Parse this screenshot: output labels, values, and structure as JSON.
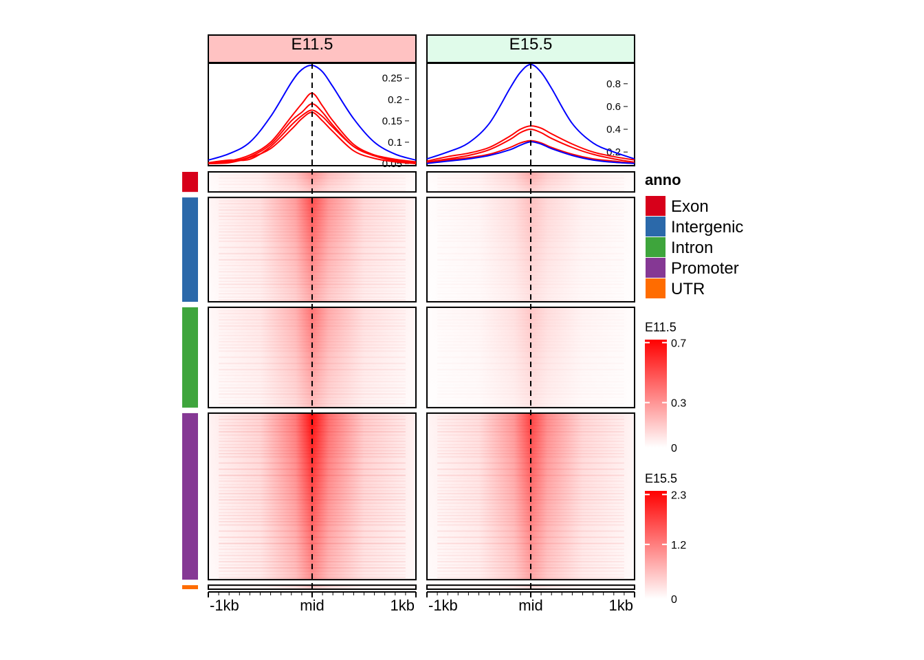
{
  "colors": {
    "E11.5_header_bg": "#ffc2c2",
    "E15.5_header_bg": "#e0fbea",
    "heat_low": "#ffffff",
    "heat_high": "#ff0000",
    "profile_blue": "#0000ff",
    "profile_red": "#ff0000"
  },
  "legend": {
    "anno_title": "anno",
    "anno_items": [
      {
        "label": "Exon",
        "color": "#d7001a"
      },
      {
        "label": "Intergenic",
        "color": "#2b69aa"
      },
      {
        "label": "Intron",
        "color": "#3ea53c"
      },
      {
        "label": "Promoter",
        "color": "#853894"
      },
      {
        "label": "UTR",
        "color": "#ff6c00"
      }
    ],
    "colorbars": [
      {
        "title": "E11.5",
        "ticks": [
          "0.7",
          "0.3",
          "0"
        ],
        "tick_values": [
          0.7,
          0.3,
          0
        ],
        "max": 0.72
      },
      {
        "title": "E15.5",
        "ticks": [
          "2.3",
          "1.2",
          "0"
        ],
        "tick_values": [
          2.3,
          1.2,
          0
        ],
        "max": 2.38
      }
    ]
  },
  "chart_data": {
    "type": "heatmap",
    "x_ticks": [
      "-1kb",
      "mid",
      "1kb"
    ],
    "x_range_bp": [
      -1000,
      1000
    ],
    "row_groups": [
      "Exon",
      "Intergenic",
      "Intron",
      "Promoter",
      "UTR"
    ],
    "row_group_sizes": [
      1,
      5.2,
      5,
      8.3,
      0.2
    ],
    "panels": [
      {
        "title": "E11.5",
        "profile": {
          "yticks": [
            "0.25",
            "0.2",
            "0.15",
            "0.1",
            "0.05"
          ],
          "ytick_values": [
            0.25,
            0.2,
            0.15,
            0.1,
            0.05
          ],
          "ylim": [
            0.045,
            0.285
          ],
          "series": [
            {
              "group": "Intergenic",
              "color": "#0000ff",
              "x": [
                -1000,
                -800,
                -600,
                -400,
                -200,
                -100,
                0,
                100,
                200,
                400,
                600,
                800,
                1000
              ],
              "y": [
                0.058,
                0.073,
                0.1,
                0.16,
                0.24,
                0.27,
                0.28,
                0.265,
                0.23,
                0.155,
                0.1,
                0.072,
                0.058
              ]
            },
            {
              "group": "Promoter",
              "color": "#ff0000",
              "x": [
                -1000,
                -800,
                -600,
                -400,
                -200,
                -100,
                0,
                100,
                200,
                400,
                600,
                800,
                1000
              ],
              "y": [
                0.052,
                0.056,
                0.07,
                0.1,
                0.16,
                0.19,
                0.215,
                0.185,
                0.15,
                0.095,
                0.07,
                0.058,
                0.052
              ]
            },
            {
              "group": "Intron",
              "color": "#ff0000",
              "x": [
                -1000,
                -800,
                -600,
                -400,
                -200,
                -100,
                0,
                100,
                200,
                400,
                600,
                800,
                1000
              ],
              "y": [
                0.05,
                0.054,
                0.066,
                0.095,
                0.15,
                0.17,
                0.19,
                0.17,
                0.14,
                0.09,
                0.068,
                0.056,
                0.05
              ]
            },
            {
              "group": "Exon",
              "color": "#ff0000",
              "x": [
                -1000,
                -800,
                -600,
                -400,
                -200,
                -100,
                0,
                100,
                200,
                400,
                600,
                800,
                1000
              ],
              "y": [
                0.052,
                0.058,
                0.06,
                0.09,
                0.14,
                0.162,
                0.175,
                0.16,
                0.135,
                0.09,
                0.07,
                0.06,
                0.054
              ]
            },
            {
              "group": "UTR",
              "color": "#ff0000",
              "x": [
                -1000,
                -800,
                -600,
                -400,
                -200,
                -100,
                0,
                100,
                200,
                400,
                600,
                800,
                1000
              ],
              "y": [
                0.05,
                0.052,
                0.064,
                0.085,
                0.13,
                0.155,
                0.17,
                0.15,
                0.125,
                0.08,
                0.062,
                0.054,
                0.05
              ]
            }
          ]
        }
      },
      {
        "title": "E15.5",
        "profile": {
          "yticks": [
            "0.8",
            "0.6",
            "0.4",
            "0.2"
          ],
          "ytick_values": [
            0.8,
            0.6,
            0.4,
            0.2
          ],
          "ylim": [
            0.08,
            0.98
          ],
          "series": [
            {
              "group": "Intergenic",
              "color": "#0000ff",
              "x": [
                -1000,
                -800,
                -600,
                -400,
                -200,
                -100,
                0,
                100,
                200,
                400,
                600,
                800,
                1000
              ],
              "y": [
                0.14,
                0.2,
                0.28,
                0.45,
                0.76,
                0.9,
                0.97,
                0.9,
                0.76,
                0.45,
                0.28,
                0.2,
                0.14
              ]
            },
            {
              "group": "Promoter",
              "color": "#ff0000",
              "x": [
                -1000,
                -800,
                -600,
                -400,
                -200,
                -100,
                0,
                100,
                200,
                400,
                600,
                800,
                1000
              ],
              "y": [
                0.12,
                0.16,
                0.19,
                0.24,
                0.34,
                0.4,
                0.43,
                0.41,
                0.36,
                0.27,
                0.2,
                0.16,
                0.13
              ]
            },
            {
              "group": "Intron",
              "color": "#ff0000",
              "x": [
                -1000,
                -800,
                -600,
                -400,
                -200,
                -100,
                0,
                100,
                200,
                400,
                600,
                800,
                1000
              ],
              "y": [
                0.11,
                0.14,
                0.17,
                0.22,
                0.31,
                0.37,
                0.4,
                0.37,
                0.32,
                0.24,
                0.18,
                0.14,
                0.11
              ]
            },
            {
              "group": "Exon",
              "color": "#ff0000",
              "x": [
                -1000,
                -800,
                -600,
                -400,
                -200,
                -100,
                0,
                100,
                200,
                400,
                600,
                800,
                1000
              ],
              "y": [
                0.11,
                0.13,
                0.15,
                0.18,
                0.24,
                0.28,
                0.3,
                0.28,
                0.24,
                0.18,
                0.14,
                0.12,
                0.1
              ]
            },
            {
              "group": "UTR",
              "color": "#0000ff",
              "x": [
                -1000,
                -800,
                -600,
                -400,
                -200,
                -100,
                0,
                100,
                200,
                400,
                600,
                800,
                1000
              ],
              "y": [
                0.1,
                0.12,
                0.14,
                0.17,
                0.22,
                0.26,
                0.29,
                0.27,
                0.23,
                0.17,
                0.13,
                0.11,
                0.1
              ]
            }
          ]
        },
        "heat_intensity": [
          0.35,
          0.25,
          0.22,
          0.75,
          0.2
        ]
      }
    ],
    "e11_heat_intensity": [
      0.45,
      0.7,
      0.55,
      0.95,
      0.3
    ]
  }
}
